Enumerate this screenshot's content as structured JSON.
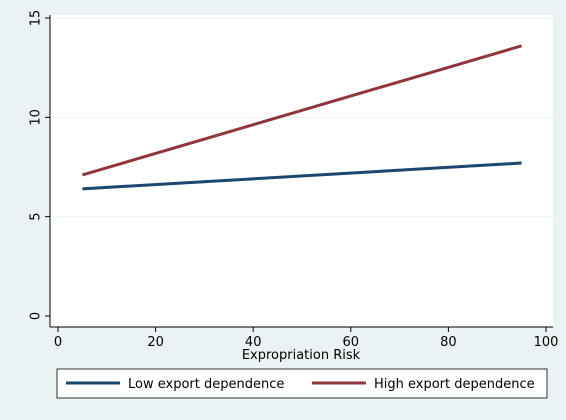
{
  "chart_data": {
    "type": "line",
    "title": "",
    "xlabel": "Expropriation Risk",
    "ylabel": "",
    "xlim": [
      0,
      100
    ],
    "ylim": [
      0,
      15
    ],
    "x_ticks": [
      0,
      20,
      40,
      60,
      80,
      100
    ],
    "y_ticks": [
      0,
      5,
      10,
      15
    ],
    "grid": "horizontal",
    "legend_position": "bottom",
    "series": [
      {
        "name": "Low export dependence",
        "color": "#1a476f",
        "x": [
          5,
          95
        ],
        "y": [
          6.4,
          7.7
        ]
      },
      {
        "name": "High export dependence",
        "color": "#90353b",
        "x": [
          5,
          95
        ],
        "y": [
          7.1,
          13.6
        ]
      }
    ]
  }
}
